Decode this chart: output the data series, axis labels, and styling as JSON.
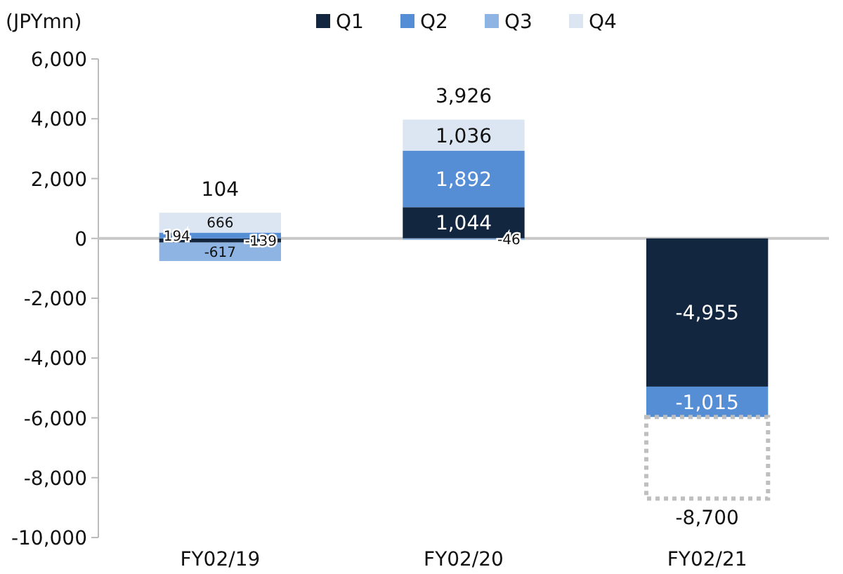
{
  "chart_data": {
    "type": "bar",
    "stacked": true,
    "ylabel": "(JPYmn)",
    "categories": [
      "FY02/19",
      "FY02/20",
      "FY02/21"
    ],
    "ylim": [
      -10000,
      6000
    ],
    "yticks": [
      {
        "value": -10000,
        "label": "-10,000"
      },
      {
        "value": -8000,
        "label": "-8,000"
      },
      {
        "value": -6000,
        "label": "-6,000"
      },
      {
        "value": -4000,
        "label": "-4,000"
      },
      {
        "value": -2000,
        "label": "-2,000"
      },
      0,
      {
        "value": 2000,
        "label": "2,000"
      },
      {
        "value": 4000,
        "label": "4,000"
      },
      {
        "value": 6000,
        "label": "6,000"
      }
    ],
    "series": [
      {
        "name": "Q1",
        "color": "#132640",
        "values": [
          -139,
          1044,
          -4955
        ],
        "value_labels": [
          "-139",
          "1,044",
          "-4,955"
        ]
      },
      {
        "name": "Q2",
        "color": "#558ed5",
        "values": [
          194,
          1892,
          -1015
        ],
        "value_labels": [
          "194",
          "1,892",
          "-1,015"
        ]
      },
      {
        "name": "Q3",
        "color": "#8db4e2",
        "values": [
          -617,
          -46,
          null
        ],
        "value_labels": [
          "-617",
          "-46",
          null
        ]
      },
      {
        "name": "Q4",
        "color": "#dce6f2",
        "values": [
          666,
          1036,
          null
        ],
        "value_labels": [
          "666",
          "1,036",
          null
        ]
      },
      {
        "color": "#bfbfbf",
        "line_style": "dotted",
        "values": [
          null,
          null,
          -2730
        ]
      }
    ],
    "totals": [
      "104",
      "3,926",
      "-8,700"
    ],
    "legend": "top"
  }
}
